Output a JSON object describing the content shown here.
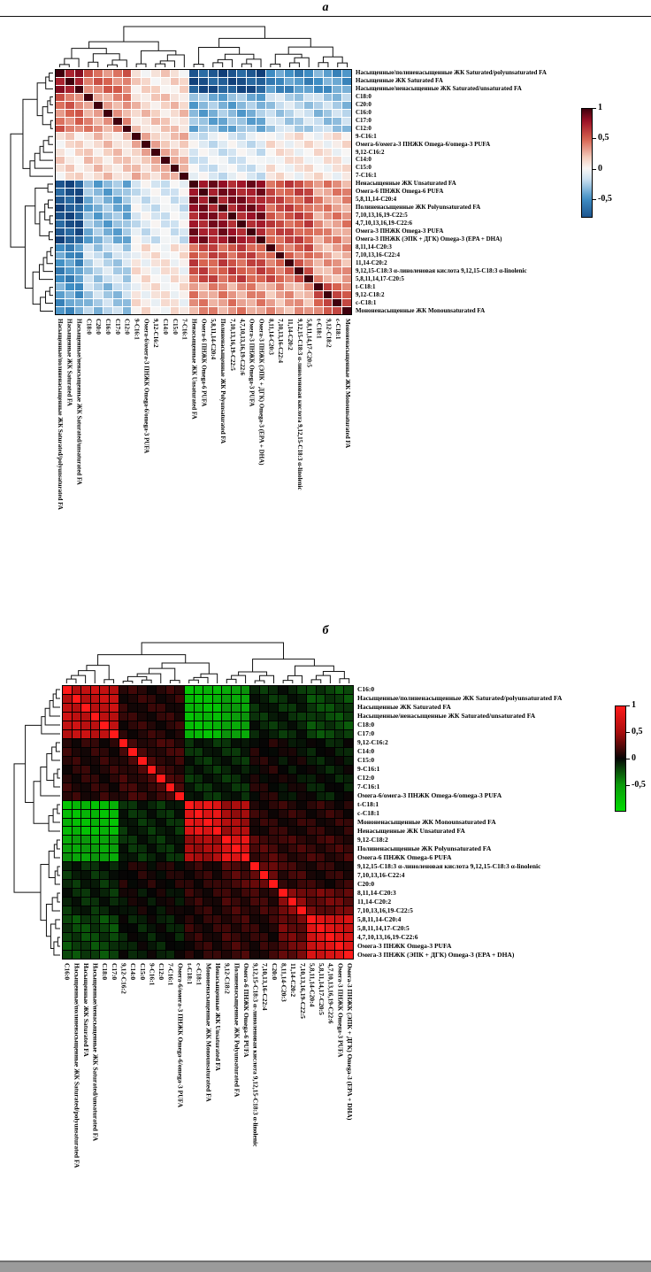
{
  "page": {
    "background": "#ffffff",
    "bottom_edge_color": "#9b9b9b"
  },
  "chart_data": [
    {
      "type": "heatmap",
      "panel_label": "а",
      "description": "Clustered correlation matrix of fatty acid (ЖК/FA) fractions, blue-white-red colormap, dendrograms on top and left",
      "legend_position": "right-colorbar",
      "grid": false,
      "colormap_stops": [
        [
          -1,
          "#08306b"
        ],
        [
          -0.5,
          "#3f8ec4"
        ],
        [
          -0.18,
          "#c9dff0"
        ],
        [
          0,
          "#f8f7f6"
        ],
        [
          0.18,
          "#f5cfc0"
        ],
        [
          0.5,
          "#d6604d"
        ],
        [
          0.8,
          "#9c1127"
        ],
        [
          1,
          "#40000d"
        ]
      ],
      "colorbar": {
        "tick_labels": [
          "1",
          "0,5",
          "0",
          "-0,5"
        ],
        "tick_values": [
          1,
          0.5,
          0,
          -0.5
        ],
        "range": [
          -0.8,
          1
        ]
      },
      "labels": [
        "Насыщенные/полиненасыщенные ЖК Saturated/polyunsaturated FA",
        "Насыщенные ЖК Saturated FA",
        "Насыщенные/ненасыщенные ЖК Saturated/unsaturated FA",
        "C18:0",
        "C20:0",
        "C16:0",
        "C17:0",
        "C12:0",
        "9-C16:1",
        "Омега-6/омега-3 ПНЖК Omega-6/omega-3 PUFA",
        "9,12-C16:2",
        "C14:0",
        "C15:0",
        "7-C16:1",
        "Ненасыщенные ЖК Unsaturated FA",
        "Омега-6 ПНЖК Omega-6 PUFA",
        "5,8,11,14-C20:4",
        "Полиненасыщенные ЖК Polyunsaturated FA",
        "7,10,13,16,19-C22:5",
        "4,7,10,13,16,19-C22:6",
        "Омега-3 ПНЖК Omega-3 PUFA",
        "Омега-3 ПНЖК (ЭПК + ДГК) Omega-3 (EPA + DHA)",
        "8,11,14-C20:3",
        "7,10,13,16-C22:4",
        "11,14-C20:2",
        "9,12,15-C18:3 α-линоленовая кислота 9,12,15-C18:3 α-linolenic",
        "5,8,11,14,17-C20:5",
        "t-C18:1",
        "9,12-C18:2",
        "c-C18:1",
        "Мононенасыщенные ЖК Monounsaturated FA"
      ],
      "groups": [
        "sat_idx",
        "sat_idx",
        "sat_idx",
        "sat_fa",
        "sat_fa",
        "sat_fa",
        "sat_fa",
        "sat_fa",
        "minor",
        "minor",
        "minor",
        "minor",
        "minor",
        "minor",
        "unsat",
        "unsat",
        "unsat",
        "unsat",
        "unsat",
        "unsat",
        "unsat",
        "unsat",
        "pufa2",
        "pufa2",
        "pufa2",
        "pufa2",
        "pufa2",
        "mufa",
        "mufa",
        "mufa",
        "mufa"
      ],
      "group_matrix": {
        "sat_idx": {
          "sat_idx": 0.85,
          "sat_fa": 0.45,
          "minor": 0.1,
          "unsat": -0.8,
          "pufa2": -0.5,
          "mufa": -0.45
        },
        "sat_fa": {
          "sat_fa": 0.35,
          "minor": 0.15,
          "unsat": -0.35,
          "pufa2": -0.2,
          "mufa": -0.25
        },
        "minor": {
          "minor": 0.2,
          "unsat": -0.1,
          "pufa2": 0.05,
          "mufa": 0.05
        },
        "unsat": {
          "unsat": 0.8,
          "pufa2": 0.55,
          "mufa": 0.35
        },
        "pufa2": {
          "pufa2": 0.5,
          "mufa": 0.3
        },
        "mufa": {
          "mufa": 0.5
        }
      },
      "diagonal": 1,
      "noise": 0.12,
      "cluster_boundaries": [
        3,
        8,
        14,
        22,
        27
      ]
    },
    {
      "type": "heatmap",
      "panel_label": "б",
      "description": "Clustered correlation matrix of fatty acid (ЖК/FA) fractions, green-black-red colormap, dendrograms on top and left",
      "legend_position": "right-colorbar",
      "grid": false,
      "colormap_stops": [
        [
          -1,
          "#00dc00"
        ],
        [
          -0.5,
          "#0b9a0b"
        ],
        [
          -0.15,
          "#0a360a"
        ],
        [
          0,
          "#050505"
        ],
        [
          0.15,
          "#380808"
        ],
        [
          0.5,
          "#a80d0d"
        ],
        [
          1,
          "#ff1a1a"
        ]
      ],
      "colorbar": {
        "tick_labels": [
          "1",
          "0,5",
          "0",
          "-0,5"
        ],
        "tick_values": [
          1,
          0.5,
          0,
          -0.5
        ],
        "range": [
          -1,
          1
        ]
      },
      "labels": [
        "C16:0",
        "Насыщенные/полиненасыщенные ЖК Saturated/polyunsaturated FA",
        "Насыщенные ЖК Saturated FA",
        "Насыщенные/ненасыщенные ЖК Saturated/unsaturated FA",
        "C18:0",
        "C17:0",
        "9,12-C16:2",
        "C14:0",
        "C15:0",
        "9-C16:1",
        "C12:0",
        "7-C16:1",
        "Омега-6/омега-3 ПНЖК Omega-6/omega-3 PUFA",
        "t-C18:1",
        "c-C18:1",
        "Мононенасыщенные ЖК Monounsaturated FA",
        "Ненасыщенные ЖК Unsaturated FA",
        "9,12-C18:2",
        "Полиненасыщенные ЖК Polyunsaturated FA",
        "Омега-6 ПНЖК Omega-6 PUFA",
        "9,12,15-C18:3 α-линоленовая кислота 9,12,15-C18:3 α-linolenic",
        "7,10,13,16-C22:4",
        "C20:0",
        "8,11,14-C20:3",
        "11,14-C20:2",
        "7,10,13,16,19-C22:5",
        "5,8,11,14-C20:4",
        "5,8,11,14,17-C20:5",
        "4,7,10,13,16,19-C22:6",
        "Омега-3 ПНЖК Omega-3 PUFA",
        "Омега-3 ПНЖК (ЭПК + ДГК) Omega-3 (EPA + DHA)"
      ],
      "groups": [
        "sat",
        "sat",
        "sat",
        "sat",
        "sat",
        "sat",
        "minor",
        "minor",
        "minor",
        "minor",
        "minor",
        "minor",
        "minor",
        "mono",
        "mono",
        "mono",
        "mono",
        "pufa",
        "pufa",
        "pufa",
        "ala",
        "ala",
        "ala",
        "lc",
        "lc",
        "lc",
        "o3",
        "o3",
        "o3",
        "o3",
        "o3"
      ],
      "group_matrix": {
        "sat": {
          "sat": 0.65,
          "minor": 0.1,
          "mono": -0.75,
          "pufa": -0.55,
          "ala": -0.1,
          "lc": -0.1,
          "o3": -0.2
        },
        "minor": {
          "minor": 0.15,
          "mono": -0.1,
          "pufa": -0.1,
          "ala": 0.05,
          "lc": 0,
          "o3": -0.05
        },
        "mono": {
          "mono": 0.8,
          "pufa": 0.5,
          "ala": 0.1,
          "lc": 0.1,
          "o3": 0.1
        },
        "pufa": {
          "pufa": 0.85,
          "ala": 0.2,
          "lc": 0.15,
          "o3": 0.15
        },
        "ala": {
          "ala": 0.35,
          "lc": 0.15,
          "o3": 0.1
        },
        "lc": {
          "lc": 0.4,
          "o3": 0.3
        },
        "o3": {
          "o3": 0.75
        }
      },
      "diagonal": 1,
      "noise": 0.08,
      "cluster_boundaries": [
        6,
        13,
        17,
        20,
        23,
        26
      ]
    }
  ]
}
